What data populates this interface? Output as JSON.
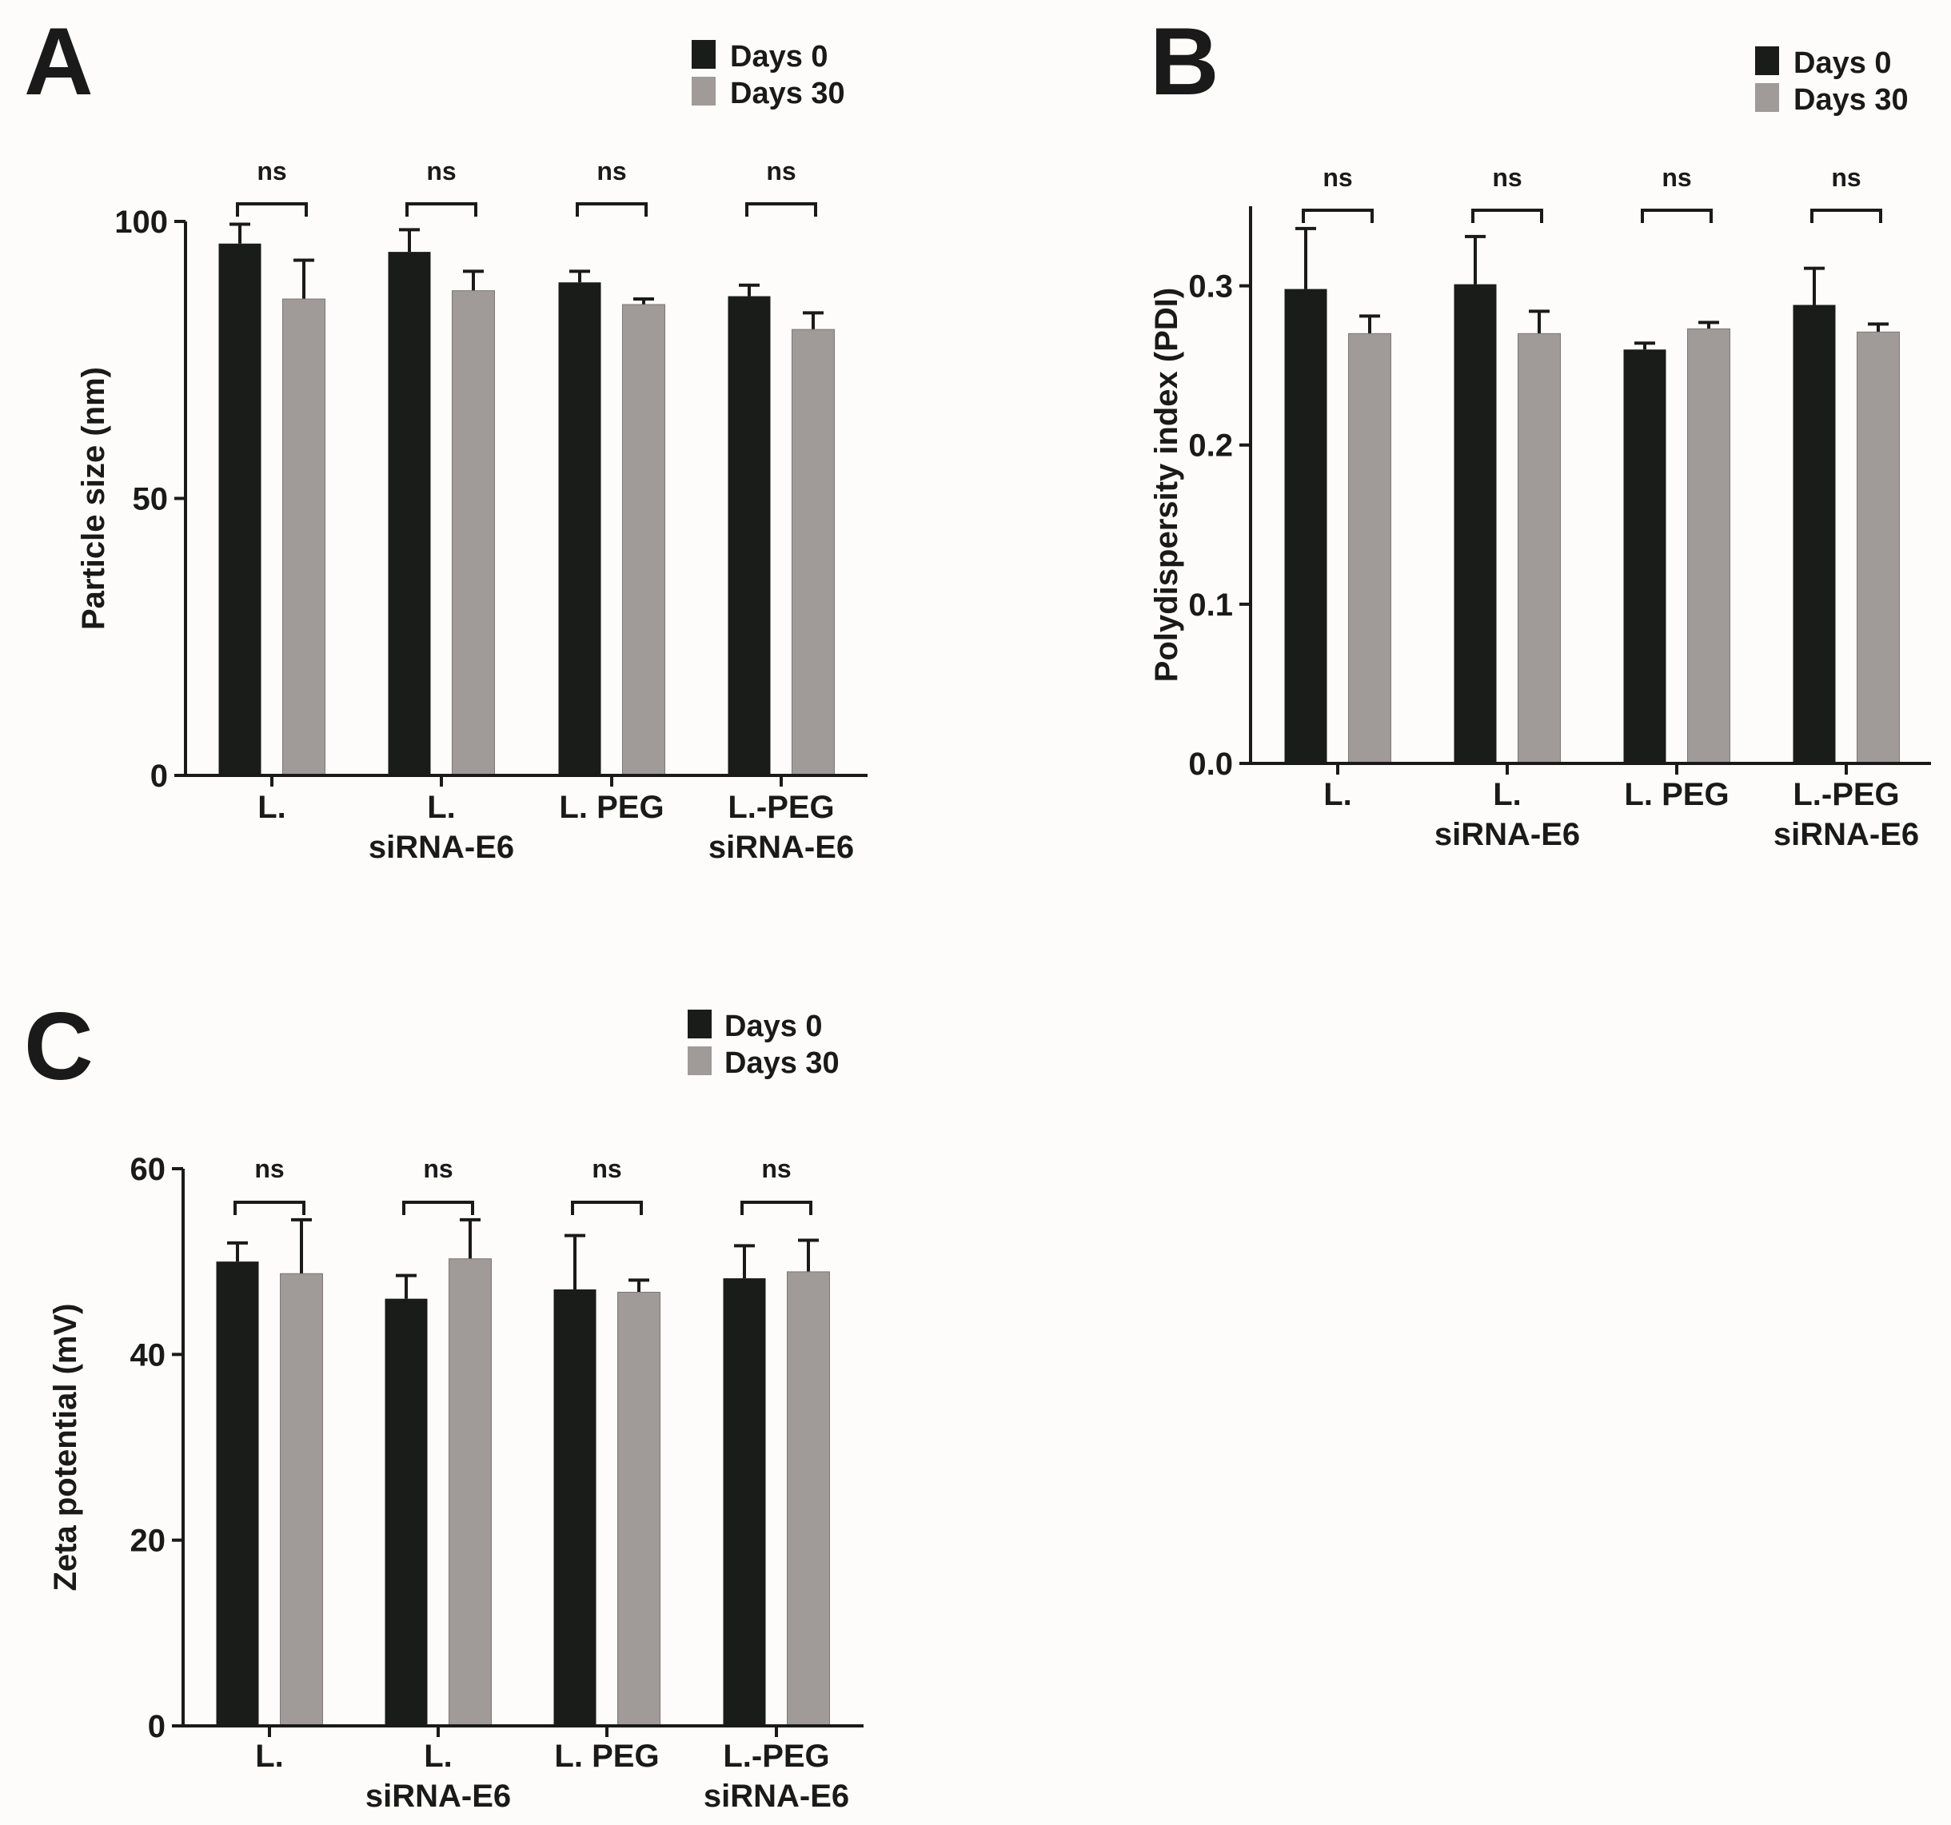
{
  "legend": {
    "series": [
      "Days 0",
      "Days 30"
    ]
  },
  "colors": {
    "days0": "#1a1c1a",
    "days30": "#a09a99",
    "axis": "#1a1a1a",
    "background": "#fdfcfa"
  },
  "chart_data": [
    {
      "panel": "A",
      "type": "bar",
      "ylabel": "Particle size (nm)",
      "categories": [
        [
          "L."
        ],
        [
          "L.",
          "siRNA-E6"
        ],
        [
          "L. PEG"
        ],
        [
          "L.-PEG",
          "siRNA-E6"
        ]
      ],
      "yticks": [
        0,
        50,
        100
      ],
      "tick_labels": [
        "0",
        "50",
        "100"
      ],
      "ylim": [
        0,
        100
      ],
      "series": [
        {
          "name": "Days 0",
          "values": [
            96,
            94.5,
            89,
            86.5
          ],
          "errors": [
            3.5,
            4,
            2,
            2
          ]
        },
        {
          "name": "Days 30",
          "values": [
            86,
            87.5,
            85,
            80.5
          ],
          "errors": [
            7,
            3.5,
            1,
            3
          ]
        }
      ],
      "significance": [
        "ns",
        "ns",
        "ns",
        "ns"
      ],
      "legend_position": "top-right"
    },
    {
      "panel": "B",
      "type": "bar",
      "ylabel": "Polydispersity index (PDI)",
      "categories": [
        [
          "L."
        ],
        [
          "L.",
          "siRNA-E6"
        ],
        [
          "L. PEG"
        ],
        [
          "L.-PEG",
          "siRNA-E6"
        ]
      ],
      "yticks": [
        0,
        0.1,
        0.2,
        0.3
      ],
      "tick_labels": [
        "0.0",
        "0.1",
        "0.2",
        "0.3"
      ],
      "ylim": [
        0,
        0.35
      ],
      "series": [
        {
          "name": "Days 0",
          "values": [
            0.298,
            0.301,
            0.26,
            0.288
          ],
          "errors": [
            0.038,
            0.03,
            0.004,
            0.023
          ]
        },
        {
          "name": "Days 30",
          "values": [
            0.27,
            0.27,
            0.273,
            0.271
          ],
          "errors": [
            0.011,
            0.014,
            0.004,
            0.005
          ]
        }
      ],
      "significance": [
        "ns",
        "ns",
        "ns",
        "ns"
      ],
      "legend_position": "top-right"
    },
    {
      "panel": "C",
      "type": "bar",
      "ylabel": "Zeta potential (mV)",
      "categories": [
        [
          "L."
        ],
        [
          "L.",
          "siRNA-E6"
        ],
        [
          "L. PEG"
        ],
        [
          "L.-PEG",
          "siRNA-E6"
        ]
      ],
      "yticks": [
        0,
        20,
        40,
        60
      ],
      "tick_labels": [
        "0",
        "20",
        "40",
        "60"
      ],
      "ylim": [
        0,
        60
      ],
      "series": [
        {
          "name": "Days 0",
          "values": [
            50,
            46,
            47,
            48.2
          ],
          "errors": [
            2,
            2.5,
            5.8,
            3.5
          ]
        },
        {
          "name": "Days 30",
          "values": [
            48.7,
            50.3,
            46.7,
            48.9
          ],
          "errors": [
            5.8,
            4.2,
            1.3,
            3.4
          ]
        }
      ],
      "significance": [
        "ns",
        "ns",
        "ns",
        "ns"
      ],
      "legend_position": "top-right"
    }
  ]
}
